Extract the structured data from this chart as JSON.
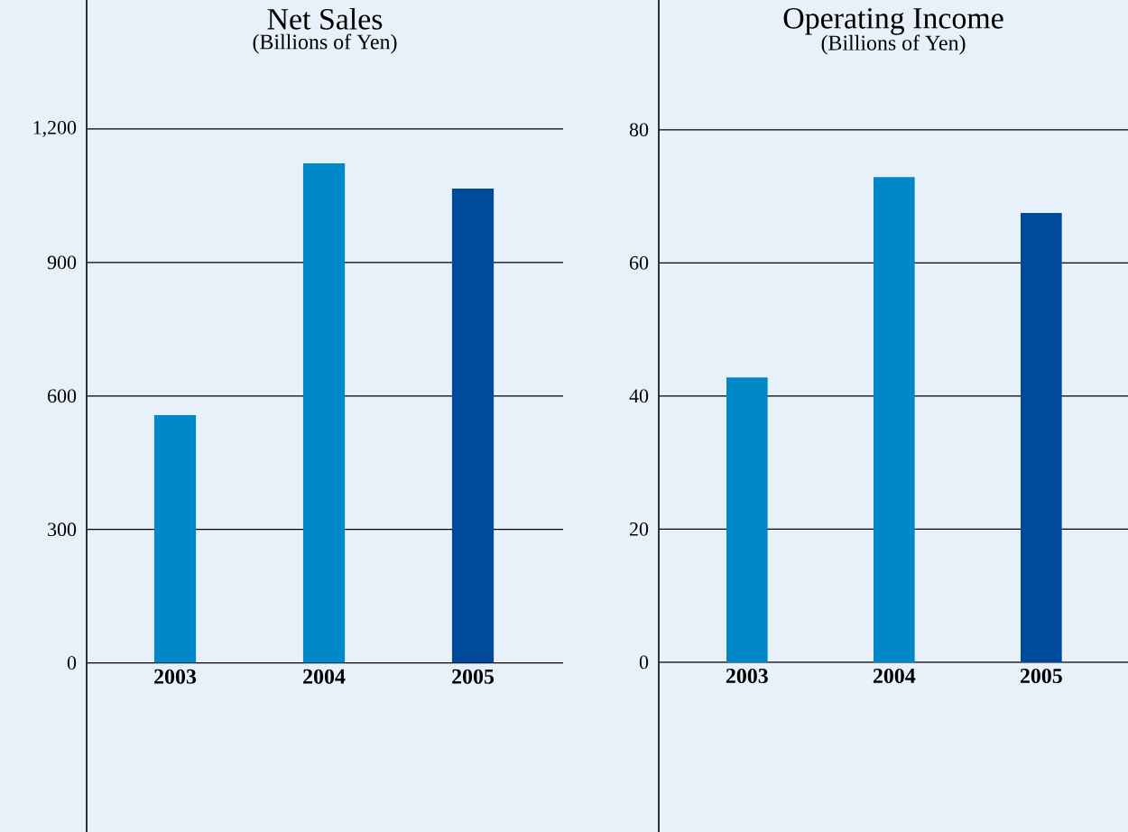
{
  "chart_data": [
    {
      "type": "bar",
      "title": "Net Sales",
      "subtitle": "(Billions of Yen)",
      "categories": [
        "2003",
        "2004",
        "2005"
      ],
      "values": [
        557,
        1123,
        1066
      ],
      "colors": [
        "#0088c8",
        "#0088c8",
        "#004a9c"
      ],
      "ylim": [
        -380,
        1490
      ],
      "yticks": [
        0,
        300,
        600,
        900,
        {
          "value": 1200,
          "label": "1,200"
        }
      ],
      "grid": "y"
    },
    {
      "type": "bar",
      "title": "Operating Income",
      "subtitle": "(Billions of Yen)",
      "categories": [
        "2003",
        "2004",
        "2005"
      ],
      "values": [
        42.8,
        72.9,
        67.5
      ],
      "colors": [
        "#0088c8",
        "#0088c8",
        "#004a9c"
      ],
      "ylim": [
        -25.5,
        99.5
      ],
      "yticks": [
        0,
        20,
        40,
        60,
        80
      ],
      "grid": "y"
    }
  ]
}
